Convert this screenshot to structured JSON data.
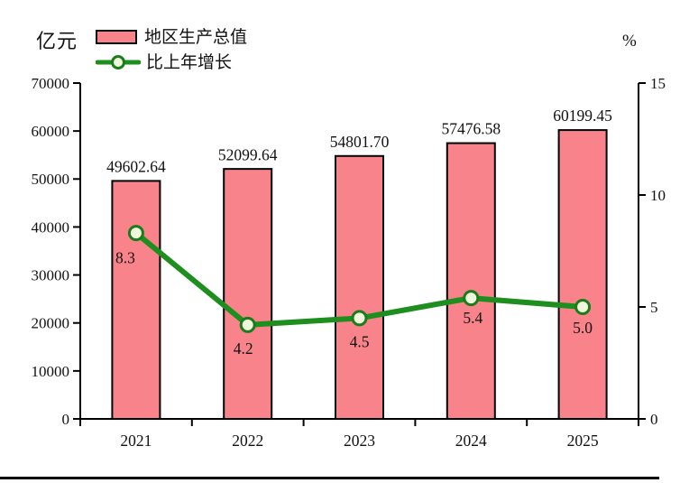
{
  "units": {
    "left": "亿元",
    "right": "%"
  },
  "legend": [
    {
      "label": "地区生产总值",
      "swatch": "bar-swatch"
    },
    {
      "label": "比上年增长",
      "swatch": "line-marker-swatch"
    }
  ],
  "colors": {
    "bar_fill": "#F8838B",
    "bar_border": "#000000",
    "line": "#1E8E1E",
    "marker_fill": "#EFF8DC",
    "marker_border": "#1A7D1A",
    "axis": "#000000",
    "text": "#111111",
    "background": "#ffffff"
  },
  "chart_data": {
    "type": "combo: bar + line",
    "categories": [
      "2021",
      "2022",
      "2023",
      "2024",
      "2025"
    ],
    "series": [
      {
        "name": "地区生产总值",
        "chart": "bar",
        "axis": "left",
        "unit": "亿元",
        "values": [
          49602.64,
          52099.64,
          54801.7,
          57476.58,
          60199.45
        ],
        "data_labels": [
          "49602.64",
          "52099.64",
          "54801.70",
          "57476.58",
          "60199.45"
        ]
      },
      {
        "name": "比上年增长",
        "chart": "line",
        "axis": "right",
        "unit": "%",
        "values": [
          8.3,
          4.2,
          4.5,
          5.4,
          5.0
        ],
        "data_labels": [
          "8.3",
          "4.2",
          "4.5",
          "5.4",
          "5.0"
        ]
      }
    ],
    "left_axis": {
      "title": "亿元",
      "min": 0,
      "max": 70000,
      "tick_interval": 10000,
      "tick_labels": [
        "70000",
        "60000",
        "50000",
        "40000",
        "30000",
        "20000",
        "10000",
        "0"
      ]
    },
    "right_axis": {
      "title": "%",
      "min": 0,
      "max": 15,
      "tick_interval": 5,
      "tick_labels": [
        "15",
        "10",
        "5",
        "0"
      ]
    },
    "x_tick_labels": [
      "2021",
      "2022",
      "2023",
      "2024",
      "2025"
    ],
    "grid": false,
    "legend_position": "top-left"
  }
}
